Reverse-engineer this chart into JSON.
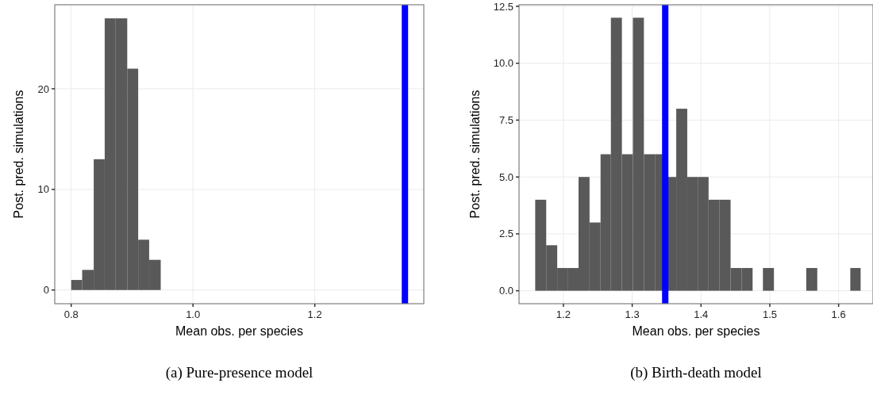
{
  "chart_data": [
    {
      "type": "histogram",
      "title": "(a) Pure-presence model",
      "xlabel": "Mean obs. per species",
      "ylabel": "Post. pred. simulations",
      "bins": [
        0.8,
        0.818,
        0.837,
        0.855,
        0.873,
        0.892,
        0.91,
        0.928,
        0.947
      ],
      "values": [
        1,
        2,
        13,
        27,
        27,
        22,
        5,
        3
      ],
      "color": "#595959",
      "xlim": [
        0.773,
        1.379
      ],
      "ylim": [
        -1.36,
        28.35
      ],
      "xticks": [
        0.8,
        {
          "value": 1.0,
          "label": "1.0"
        },
        1.2
      ],
      "yticks": [
        0,
        10,
        20
      ],
      "grid": true,
      "ref_lines": [
        {
          "axis": "x",
          "value": 1.348,
          "color": "#0000ff"
        }
      ]
    },
    {
      "type": "histogram",
      "title": "(b) Birth-death model",
      "xlabel": "Mean obs. per species",
      "ylabel": "Post. pred. simulations",
      "bins": [
        1.159,
        1.175,
        1.191,
        1.206,
        1.222,
        1.238,
        1.254,
        1.269,
        1.285,
        1.301,
        1.317,
        1.333,
        1.348,
        1.364,
        1.38,
        1.396,
        1.411,
        1.427,
        1.443,
        1.459,
        1.475,
        1.49,
        1.506,
        1.553,
        1.569,
        1.617,
        1.632
      ],
      "values": [
        4,
        2,
        1,
        1,
        5,
        3,
        6,
        12,
        6,
        12,
        6,
        6,
        5,
        8,
        5,
        5,
        4,
        4,
        1,
        1,
        0,
        1,
        0,
        1,
        0,
        1
      ],
      "color": "#595959",
      "xlim": [
        1.1355,
        1.65
      ],
      "ylim": [
        -0.57,
        12.57
      ],
      "xticks": [
        1.2,
        1.3,
        1.4,
        1.5,
        1.6
      ],
      "yticks": [
        {
          "value": 0,
          "label": "0.0"
        },
        {
          "value": 2.5,
          "label": "2.5"
        },
        {
          "value": 5,
          "label": "5.0"
        },
        {
          "value": 7.5,
          "label": "7.5"
        },
        {
          "value": 10,
          "label": "10.0"
        },
        {
          "value": 12.5,
          "label": "12.5"
        }
      ],
      "grid": true,
      "ref_lines": [
        {
          "axis": "x",
          "value": 1.348,
          "color": "#0000ff"
        }
      ]
    }
  ]
}
